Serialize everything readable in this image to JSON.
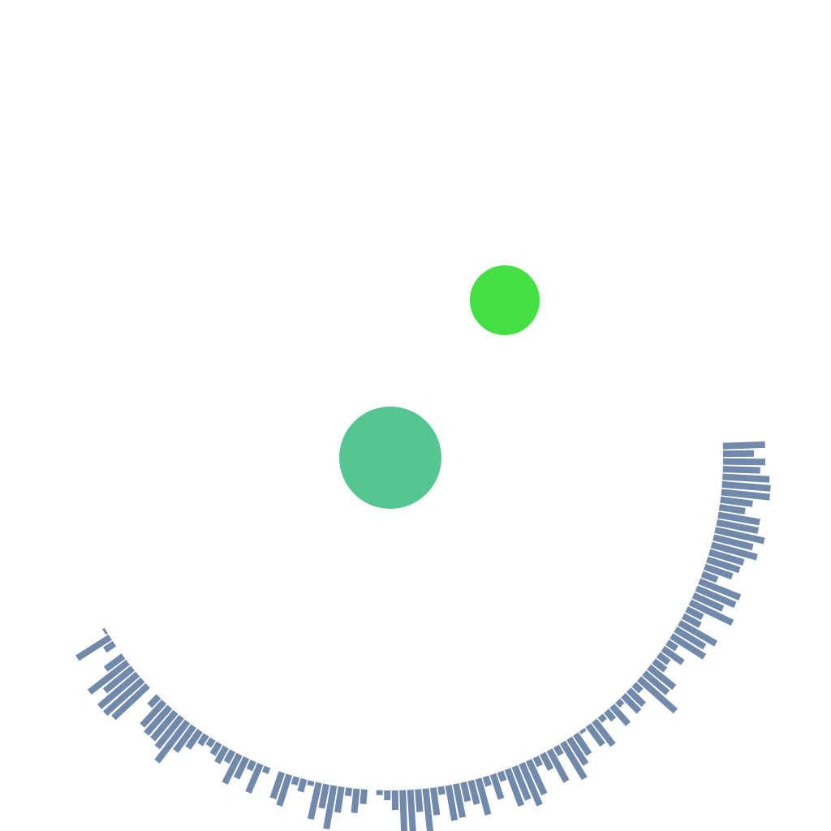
{
  "scene": {
    "background_color": "#ffffff",
    "ring": {
      "color": "#7189ab",
      "start_angle_deg": -150,
      "end_angle_deg": 2,
      "bar_lengths": [
        0,
        3,
        48,
        14,
        0,
        27,
        60,
        44,
        62,
        62,
        58,
        0,
        16,
        40,
        44,
        44,
        48,
        62,
        38,
        26,
        14,
        10,
        16,
        22,
        16,
        40,
        28,
        12,
        38,
        8,
        0,
        34,
        40,
        10,
        16,
        6,
        46,
        30,
        54,
        32,
        10,
        30,
        18,
        0,
        6,
        12,
        24,
        60,
        62,
        28,
        60,
        34,
        10,
        44,
        42,
        24,
        30,
        46,
        12,
        32,
        12,
        48,
        44,
        56,
        46,
        12,
        22,
        44,
        12,
        52,
        38,
        30,
        4,
        30,
        38,
        8,
        14,
        30,
        8,
        28,
        26,
        12,
        60,
        38,
        40,
        18,
        16,
        30,
        14,
        48,
        42,
        52,
        24,
        22,
        58,
        40,
        52,
        54,
        20,
        36,
        42,
        44,
        58,
        50,
        62,
        52,
        52,
        32,
        40,
        60,
        60,
        58,
        46,
        52,
        38,
        52
      ]
    },
    "circles": [
      {
        "name": "player-circle",
        "color": "#55c692",
        "label": ""
      },
      {
        "name": "target-circle",
        "color": "#43df45",
        "label": ""
      }
    ]
  }
}
